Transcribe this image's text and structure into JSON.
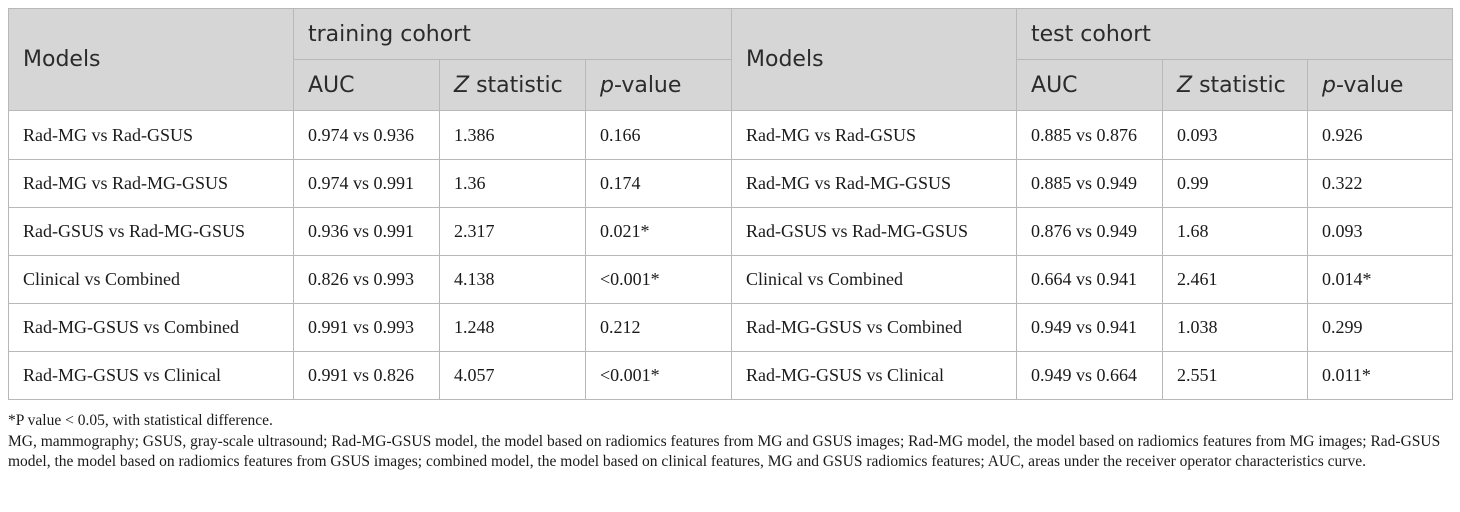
{
  "table": {
    "headers": {
      "models_left": "Models",
      "training_group": "training cohort",
      "models_right": "Models",
      "test_group": "test cohort",
      "auc_train": "AUC",
      "z_train_italic": "Z",
      "z_train_rest": " statistic",
      "p_train_italic": "p",
      "p_train_rest": "-value",
      "auc_test": "AUC",
      "z_test_italic": "Z",
      "z_test_rest": " statistic",
      "p_test_italic": "p",
      "p_test_rest": "-value"
    },
    "rows": [
      {
        "model_train": "Rad-MG vs Rad-GSUS",
        "auc_train": "0.974 vs 0.936",
        "z_train": "1.386",
        "p_train": "0.166",
        "model_test": "Rad-MG vs Rad-GSUS",
        "auc_test": "0.885 vs 0.876",
        "z_test": "0.093",
        "p_test": "0.926"
      },
      {
        "model_train": "Rad-MG vs Rad-MG-GSUS",
        "auc_train": "0.974 vs 0.991",
        "z_train": "1.36",
        "p_train": "0.174",
        "model_test": "Rad-MG vs Rad-MG-GSUS",
        "auc_test": "0.885 vs 0.949",
        "z_test": "0.99",
        "p_test": "0.322"
      },
      {
        "model_train": "Rad-GSUS vs Rad-MG-GSUS",
        "auc_train": "0.936 vs 0.991",
        "z_train": "2.317",
        "p_train": "0.021*",
        "model_test": "Rad-GSUS vs Rad-MG-GSUS",
        "auc_test": "0.876 vs 0.949",
        "z_test": "1.68",
        "p_test": "0.093"
      },
      {
        "model_train": "Clinical vs Combined",
        "auc_train": "0.826 vs 0.993",
        "z_train": "4.138",
        "p_train": "<0.001*",
        "model_test": "Clinical vs Combined",
        "auc_test": "0.664 vs 0.941",
        "z_test": "2.461",
        "p_test": "0.014*"
      },
      {
        "model_train": "Rad-MG-GSUS vs Combined",
        "auc_train": "0.991 vs 0.993",
        "z_train": "1.248",
        "p_train": "0.212",
        "model_test": "Rad-MG-GSUS vs Combined",
        "auc_test": "0.949 vs 0.941",
        "z_test": "1.038",
        "p_test": "0.299"
      },
      {
        "model_train": "Rad-MG-GSUS vs Clinical",
        "auc_train": "0.991 vs 0.826",
        "z_train": "4.057",
        "p_train": "<0.001*",
        "model_test": "Rad-MG-GSUS vs Clinical",
        "auc_test": "0.949 vs 0.664",
        "z_test": "2.551",
        "p_test": "0.011*"
      }
    ]
  },
  "notes": {
    "significance": "*P value < 0.05, with statistical difference.",
    "abbreviations": "MG, mammography; GSUS, gray-scale ultrasound; Rad-MG-GSUS model, the model based on radiomics features from MG and GSUS images; Rad-MG model, the model based on radiomics features from MG images; Rad-GSUS model, the model based on radiomics features from GSUS images; combined model, the model based on clinical features, MG and GSUS radiomics features; AUC, areas under the receiver operator characteristics curve."
  }
}
